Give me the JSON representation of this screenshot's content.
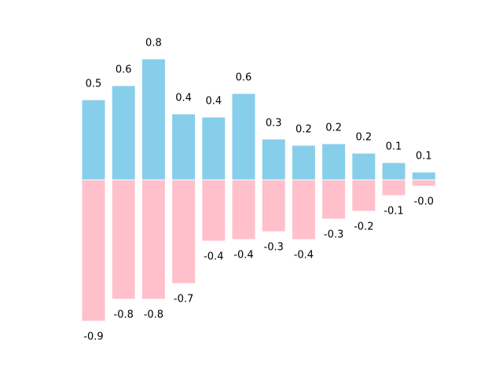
{
  "chart_data": {
    "type": "bar",
    "grid": false,
    "axes_visible": false,
    "ylim": [
      -1.0,
      1.0
    ],
    "categories": [
      "",
      "",
      "",
      "",
      "",
      "",
      "",
      "",
      "",
      "",
      "",
      ""
    ],
    "series": [
      {
        "values": [
          0.51,
          0.6,
          0.77,
          0.42,
          0.4,
          0.55,
          0.26,
          0.22,
          0.23,
          0.17,
          0.11,
          0.05
        ],
        "labels": [
          "0.5",
          "0.6",
          "0.8",
          "0.4",
          "0.4",
          "0.6",
          "0.3",
          "0.2",
          "0.2",
          "0.2",
          "0.1",
          "0.1"
        ],
        "color": "#87CEEB"
      },
      {
        "values": [
          -0.9,
          -0.76,
          -0.76,
          -0.66,
          -0.39,
          -0.38,
          -0.33,
          -0.38,
          -0.25,
          -0.2,
          -0.1,
          -0.04
        ],
        "labels": [
          "-0.9",
          "-0.8",
          "-0.8",
          "-0.7",
          "-0.4",
          "-0.4",
          "-0.3",
          "-0.4",
          "-0.3",
          "-0.2",
          "-0.1",
          "-0.0"
        ],
        "color": "#FFC0CB"
      }
    ]
  }
}
